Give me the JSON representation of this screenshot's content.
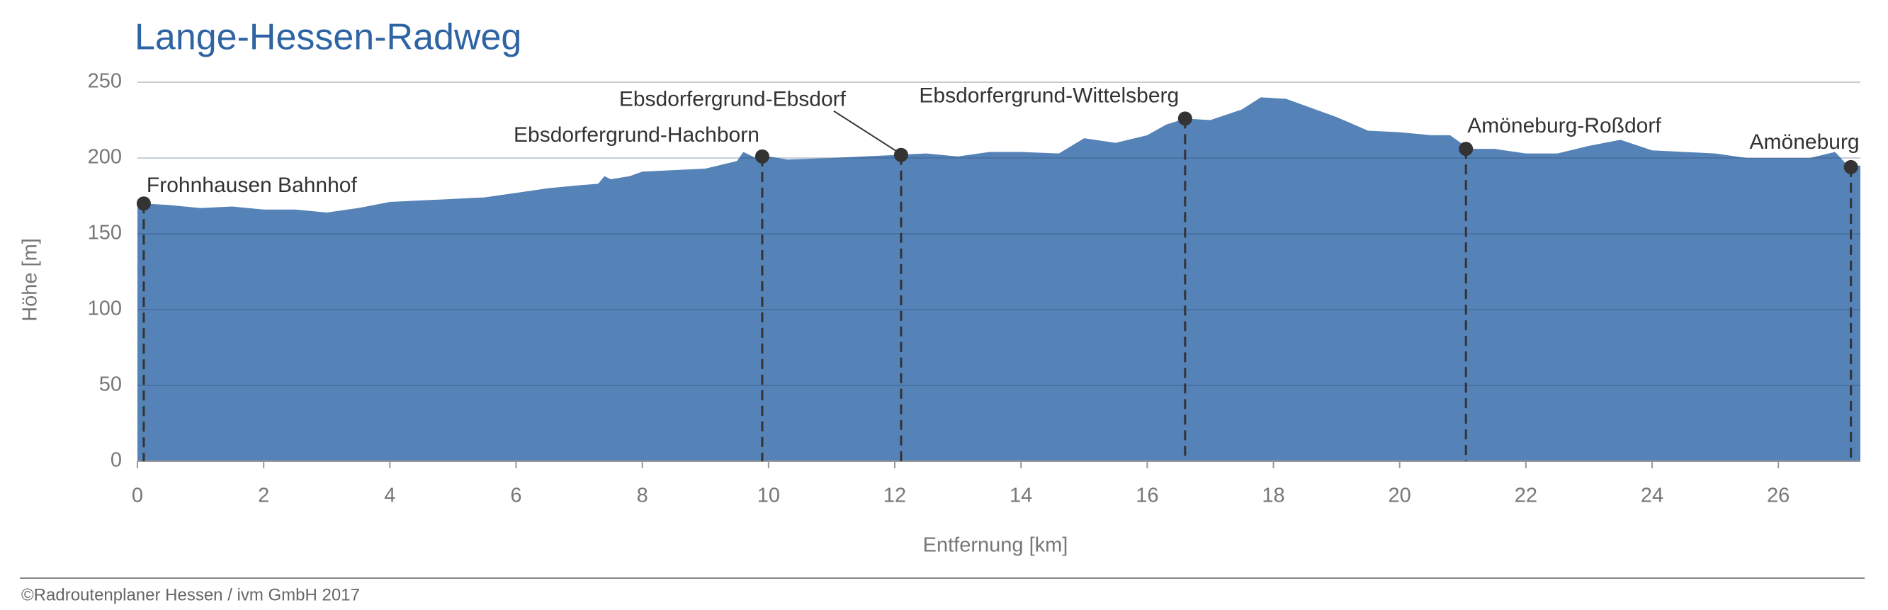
{
  "chart_data": {
    "type": "area",
    "title": "Lange-Hessen-Radweg",
    "xlabel": "Entfernung [km]",
    "ylabel": "Höhe [m]",
    "color": "#5582b7",
    "x": [
      0,
      0.1,
      0.5,
      1,
      1.5,
      2,
      2.5,
      3,
      3.5,
      4,
      4.5,
      5,
      5.5,
      6,
      6.5,
      7,
      7.3,
      7.4,
      7.5,
      7.8,
      8,
      8.5,
      9,
      9.5,
      9.6,
      9.8,
      10,
      10.3,
      11,
      11.5,
      12,
      12.5,
      13,
      13.5,
      14,
      14.6,
      15,
      15.5,
      16,
      16.3,
      16.6,
      17,
      17.5,
      17.8,
      18.2,
      18.6,
      19,
      19.5,
      20,
      20.5,
      20.8,
      21.1,
      21.5,
      22,
      22.5,
      23,
      23.5,
      24,
      25,
      25.5,
      26,
      26.5,
      26.9,
      27.1,
      27.3
    ],
    "values": [
      170,
      170,
      169,
      167,
      168,
      166,
      166,
      164,
      167,
      171,
      172,
      173,
      174,
      177,
      180,
      182,
      183,
      188,
      186,
      188,
      191,
      192,
      193,
      198,
      204,
      200,
      201,
      199,
      200,
      201,
      202,
      203,
      201,
      204,
      204,
      203,
      213,
      210,
      215,
      222,
      226,
      225,
      232,
      240,
      239,
      233,
      227,
      218,
      217,
      215,
      215,
      206,
      206,
      203,
      203,
      208,
      212,
      205,
      203,
      200,
      200,
      200,
      204,
      195,
      195
    ],
    "xlim": [
      0,
      27.3
    ],
    "ylim": [
      0,
      250
    ],
    "xticks": [
      0,
      2,
      4,
      6,
      8,
      10,
      12,
      14,
      16,
      18,
      20,
      22,
      24,
      26
    ],
    "yticks": [
      0,
      50,
      100,
      150,
      200,
      250
    ],
    "grid": true,
    "annotations": [
      {
        "label": "Frohnhausen Bahnhof",
        "x": 0.1,
        "y": 170
      },
      {
        "label": "Ebsdorfergrund-Hachborn",
        "x": 9.9,
        "y": 201
      },
      {
        "label": "Ebsdorfergrund-Ebsdorf",
        "x": 12.1,
        "y": 202
      },
      {
        "label": "Ebsdorfergrund-Wittelsberg",
        "x": 16.6,
        "y": 226
      },
      {
        "label": "Amöneburg-Roßdorf",
        "x": 21.05,
        "y": 206
      },
      {
        "label": "Amöneburg",
        "x": 27.15,
        "y": 194
      }
    ]
  },
  "footer": "©Radroutenplaner Hessen / ivm GmbH 2017"
}
